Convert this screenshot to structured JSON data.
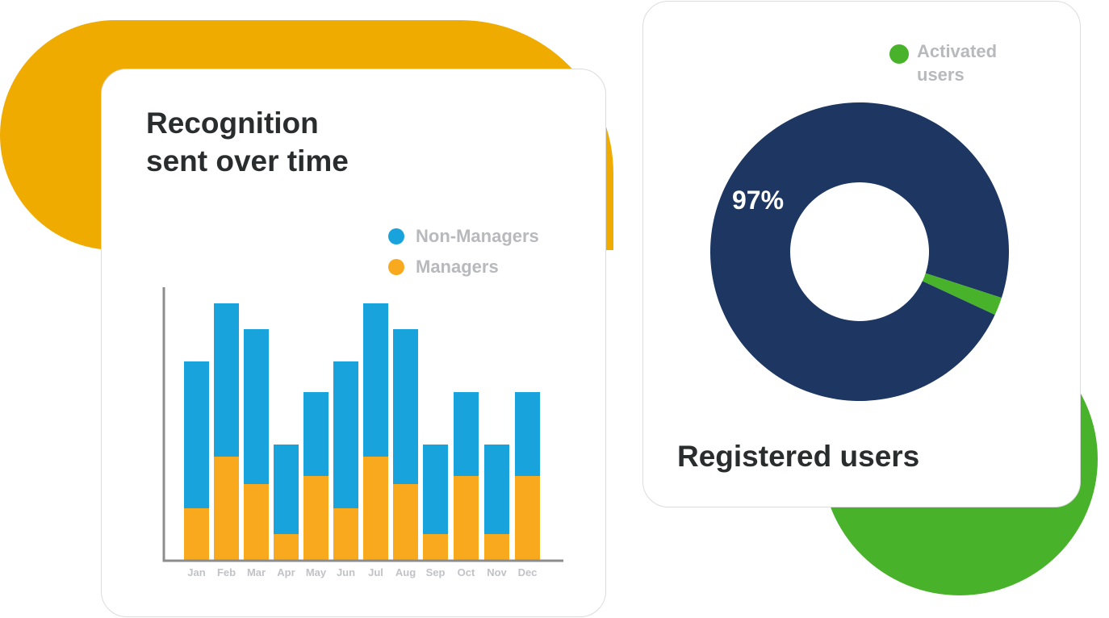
{
  "colors": {
    "non_managers": "#19a3dc",
    "managers": "#f8a91e",
    "navy": "#1d3762",
    "green": "#48b32a",
    "yellow_bg": "#f0ab00",
    "axis": "#8d8d8d"
  },
  "left_card": {
    "title_line1": "Recognition",
    "title_line2": "sent over time",
    "legend": [
      {
        "label": "Non-Managers",
        "color": "#19a3dc"
      },
      {
        "label": "Managers",
        "color": "#f8a91e"
      }
    ]
  },
  "right_card": {
    "title": "Registered users",
    "percent_label": "97%",
    "legend": [
      {
        "label": "Activated users",
        "color": "#48b32a"
      }
    ]
  },
  "chart_data": [
    {
      "type": "bar",
      "stacked": true,
      "title": "Recognition sent over time",
      "xlabel": "",
      "ylabel": "",
      "categories": [
        "Jan",
        "Feb",
        "Mar",
        "Apr",
        "May",
        "Jun",
        "Jul",
        "Aug",
        "Sep",
        "Oct",
        "Nov",
        "Dec"
      ],
      "series": [
        {
          "name": "Managers",
          "color": "#f8a91e",
          "values": [
            64,
            128,
            94,
            32,
            104,
            64,
            128,
            94,
            32,
            104,
            32,
            104
          ]
        },
        {
          "name": "Non-Managers",
          "color": "#19a3dc",
          "values": [
            182,
            190,
            192,
            111,
            104,
            182,
            190,
            192,
            111,
            104,
            111,
            104
          ]
        }
      ],
      "ylim": [
        0,
        340
      ],
      "grid": false,
      "y_ticks_shown": false,
      "legend_position": "top-right",
      "note": "No y-axis scale shown; values are relative heights (pixels)."
    },
    {
      "type": "pie",
      "donut": true,
      "title": "Registered users",
      "slices": [
        {
          "label": "Registered users",
          "value": 97,
          "color": "#1d3762"
        },
        {
          "label": "Activated users",
          "value": 3,
          "color": "#48b32a"
        }
      ],
      "annotations": [
        "97%"
      ],
      "legend_position": "top-right"
    }
  ]
}
